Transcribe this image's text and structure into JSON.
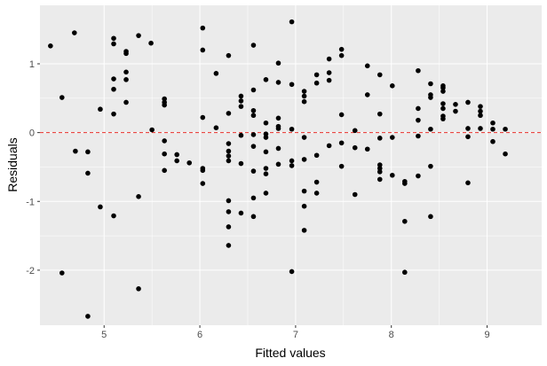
{
  "chart_data": {
    "type": "scatter",
    "xlabel": "Fitted values",
    "ylabel": "Residuals",
    "xlim": [
      4.33,
      9.57
    ],
    "ylim": [
      -2.8,
      1.85
    ],
    "x_ticks": [
      5,
      6,
      7,
      8,
      9
    ],
    "x_tick_labels": [
      "5",
      "6",
      "7",
      "8",
      "9"
    ],
    "y_ticks": [
      -2,
      -1,
      0,
      1
    ],
    "y_tick_labels": [
      "-2",
      "-1",
      "0",
      "1"
    ],
    "grid": true,
    "background": "#EBEBEB",
    "gridline_color": "#FFFFFF",
    "point_color": "#000000",
    "reference_line": {
      "y": 0,
      "style": "dashed",
      "color": "#E8302A"
    },
    "points": [
      {
        "x": 4.44,
        "y": 1.26
      },
      {
        "x": 4.56,
        "y": 0.51
      },
      {
        "x": 4.56,
        "y": -2.04
      },
      {
        "x": 4.69,
        "y": 1.45
      },
      {
        "x": 4.7,
        "y": -0.27
      },
      {
        "x": 4.83,
        "y": -0.28
      },
      {
        "x": 4.83,
        "y": -0.59
      },
      {
        "x": 4.83,
        "y": -2.67
      },
      {
        "x": 4.96,
        "y": 0.34
      },
      {
        "x": 4.96,
        "y": -1.08
      },
      {
        "x": 5.1,
        "y": 1.37
      },
      {
        "x": 5.1,
        "y": 1.29
      },
      {
        "x": 5.1,
        "y": 0.78
      },
      {
        "x": 5.1,
        "y": 0.63
      },
      {
        "x": 5.1,
        "y": 0.27
      },
      {
        "x": 5.1,
        "y": -1.21
      },
      {
        "x": 5.23,
        "y": 1.18
      },
      {
        "x": 5.23,
        "y": 1.15
      },
      {
        "x": 5.23,
        "y": 0.88
      },
      {
        "x": 5.23,
        "y": 0.77
      },
      {
        "x": 5.23,
        "y": 0.44
      },
      {
        "x": 5.36,
        "y": 1.41
      },
      {
        "x": 5.36,
        "y": -0.93
      },
      {
        "x": 5.36,
        "y": -2.27
      },
      {
        "x": 5.49,
        "y": 1.3
      },
      {
        "x": 5.5,
        "y": 0.04
      },
      {
        "x": 5.63,
        "y": 0.49
      },
      {
        "x": 5.63,
        "y": 0.44
      },
      {
        "x": 5.63,
        "y": 0.4
      },
      {
        "x": 5.63,
        "y": -0.12
      },
      {
        "x": 5.63,
        "y": -0.31
      },
      {
        "x": 5.63,
        "y": -0.55
      },
      {
        "x": 5.76,
        "y": -0.32
      },
      {
        "x": 5.76,
        "y": -0.41
      },
      {
        "x": 5.89,
        "y": -0.44
      },
      {
        "x": 6.03,
        "y": 1.52
      },
      {
        "x": 6.03,
        "y": 1.2
      },
      {
        "x": 6.03,
        "y": 0.22
      },
      {
        "x": 6.03,
        "y": -0.52
      },
      {
        "x": 6.03,
        "y": -0.55
      },
      {
        "x": 6.03,
        "y": -0.74
      },
      {
        "x": 6.17,
        "y": 0.86
      },
      {
        "x": 6.17,
        "y": 0.07
      },
      {
        "x": 6.3,
        "y": 1.12
      },
      {
        "x": 6.3,
        "y": 0.28
      },
      {
        "x": 6.3,
        "y": -0.16
      },
      {
        "x": 6.3,
        "y": -0.27
      },
      {
        "x": 6.3,
        "y": -0.34
      },
      {
        "x": 6.3,
        "y": -0.41
      },
      {
        "x": 6.3,
        "y": -0.99
      },
      {
        "x": 6.3,
        "y": -1.15
      },
      {
        "x": 6.3,
        "y": -1.37
      },
      {
        "x": 6.3,
        "y": -1.64
      },
      {
        "x": 6.43,
        "y": 0.53
      },
      {
        "x": 6.43,
        "y": 0.46
      },
      {
        "x": 6.43,
        "y": 0.38
      },
      {
        "x": 6.43,
        "y": -0.04
      },
      {
        "x": 6.43,
        "y": -0.45
      },
      {
        "x": 6.43,
        "y": -1.17
      },
      {
        "x": 6.56,
        "y": 1.27
      },
      {
        "x": 6.56,
        "y": 0.62
      },
      {
        "x": 6.56,
        "y": 0.32
      },
      {
        "x": 6.56,
        "y": 0.25
      },
      {
        "x": 6.56,
        "y": -0.03
      },
      {
        "x": 6.56,
        "y": -0.2
      },
      {
        "x": 6.56,
        "y": -0.56
      },
      {
        "x": 6.56,
        "y": -0.95
      },
      {
        "x": 6.56,
        "y": -1.22
      },
      {
        "x": 6.69,
        "y": 0.77
      },
      {
        "x": 6.69,
        "y": 0.14
      },
      {
        "x": 6.69,
        "y": -0.02
      },
      {
        "x": 6.69,
        "y": -0.07
      },
      {
        "x": 6.69,
        "y": -0.28
      },
      {
        "x": 6.69,
        "y": -0.52
      },
      {
        "x": 6.69,
        "y": -0.6
      },
      {
        "x": 6.69,
        "y": -0.88
      },
      {
        "x": 6.82,
        "y": 1.01
      },
      {
        "x": 6.82,
        "y": 0.73
      },
      {
        "x": 6.82,
        "y": 0.21
      },
      {
        "x": 6.82,
        "y": 0.09
      },
      {
        "x": 6.82,
        "y": 0.06
      },
      {
        "x": 6.82,
        "y": -0.23
      },
      {
        "x": 6.82,
        "y": -0.46
      },
      {
        "x": 6.96,
        "y": 1.61
      },
      {
        "x": 6.96,
        "y": 0.7
      },
      {
        "x": 6.96,
        "y": 0.05
      },
      {
        "x": 6.96,
        "y": -0.41
      },
      {
        "x": 6.96,
        "y": -0.48
      },
      {
        "x": 6.96,
        "y": -2.02
      },
      {
        "x": 7.09,
        "y": 0.6
      },
      {
        "x": 7.09,
        "y": 0.53
      },
      {
        "x": 7.09,
        "y": 0.45
      },
      {
        "x": 7.09,
        "y": -0.07
      },
      {
        "x": 7.09,
        "y": -0.39
      },
      {
        "x": 7.09,
        "y": -0.85
      },
      {
        "x": 7.09,
        "y": -1.07
      },
      {
        "x": 7.09,
        "y": -1.42
      },
      {
        "x": 7.22,
        "y": 0.84
      },
      {
        "x": 7.22,
        "y": 0.72
      },
      {
        "x": 7.22,
        "y": -0.33
      },
      {
        "x": 7.22,
        "y": -0.72
      },
      {
        "x": 7.22,
        "y": -0.88
      },
      {
        "x": 7.35,
        "y": 1.07
      },
      {
        "x": 7.35,
        "y": 0.87
      },
      {
        "x": 7.35,
        "y": 0.76
      },
      {
        "x": 7.35,
        "y": -0.19
      },
      {
        "x": 7.48,
        "y": 1.21
      },
      {
        "x": 7.48,
        "y": 1.12
      },
      {
        "x": 7.48,
        "y": 0.26
      },
      {
        "x": 7.48,
        "y": -0.15
      },
      {
        "x": 7.48,
        "y": -0.49
      },
      {
        "x": 7.62,
        "y": 0.03
      },
      {
        "x": 7.62,
        "y": -0.22
      },
      {
        "x": 7.62,
        "y": -0.9
      },
      {
        "x": 7.75,
        "y": 0.97
      },
      {
        "x": 7.75,
        "y": 0.55
      },
      {
        "x": 7.75,
        "y": -0.24
      },
      {
        "x": 7.88,
        "y": 0.84
      },
      {
        "x": 7.88,
        "y": 0.27
      },
      {
        "x": 7.88,
        "y": -0.08
      },
      {
        "x": 7.88,
        "y": -0.47
      },
      {
        "x": 7.88,
        "y": -0.52
      },
      {
        "x": 7.88,
        "y": -0.57
      },
      {
        "x": 7.88,
        "y": -0.68
      },
      {
        "x": 8.01,
        "y": 0.68
      },
      {
        "x": 8.01,
        "y": -0.07
      },
      {
        "x": 8.01,
        "y": -0.62
      },
      {
        "x": 8.14,
        "y": -0.71
      },
      {
        "x": 8.14,
        "y": -0.74
      },
      {
        "x": 8.14,
        "y": -1.29
      },
      {
        "x": 8.14,
        "y": -2.03
      },
      {
        "x": 8.28,
        "y": -0.63
      },
      {
        "x": 8.28,
        "y": 0.35
      },
      {
        "x": 8.28,
        "y": 0.9
      },
      {
        "x": 8.28,
        "y": 0.18
      },
      {
        "x": 8.28,
        "y": -0.05
      },
      {
        "x": 8.41,
        "y": 0.71
      },
      {
        "x": 8.41,
        "y": 0.55
      },
      {
        "x": 8.41,
        "y": 0.51
      },
      {
        "x": 8.41,
        "y": 0.05
      },
      {
        "x": 8.41,
        "y": -0.49
      },
      {
        "x": 8.41,
        "y": -1.22
      },
      {
        "x": 8.54,
        "y": 0.68
      },
      {
        "x": 8.54,
        "y": 0.65
      },
      {
        "x": 8.54,
        "y": 0.6
      },
      {
        "x": 8.54,
        "y": 0.42
      },
      {
        "x": 8.54,
        "y": 0.35
      },
      {
        "x": 8.54,
        "y": 0.24
      },
      {
        "x": 8.54,
        "y": 0.2
      },
      {
        "x": 8.67,
        "y": 0.41
      },
      {
        "x": 8.67,
        "y": 0.31
      },
      {
        "x": 8.8,
        "y": 0.44
      },
      {
        "x": 8.8,
        "y": 0.06
      },
      {
        "x": 8.8,
        "y": -0.06
      },
      {
        "x": 8.8,
        "y": -0.73
      },
      {
        "x": 8.93,
        "y": 0.38
      },
      {
        "x": 8.93,
        "y": 0.31
      },
      {
        "x": 8.93,
        "y": 0.25
      },
      {
        "x": 8.93,
        "y": 0.06
      },
      {
        "x": 9.06,
        "y": 0.14
      },
      {
        "x": 9.06,
        "y": 0.05
      },
      {
        "x": 9.06,
        "y": -0.13
      },
      {
        "x": 9.19,
        "y": 0.05
      },
      {
        "x": 9.19,
        "y": -0.31
      }
    ]
  }
}
